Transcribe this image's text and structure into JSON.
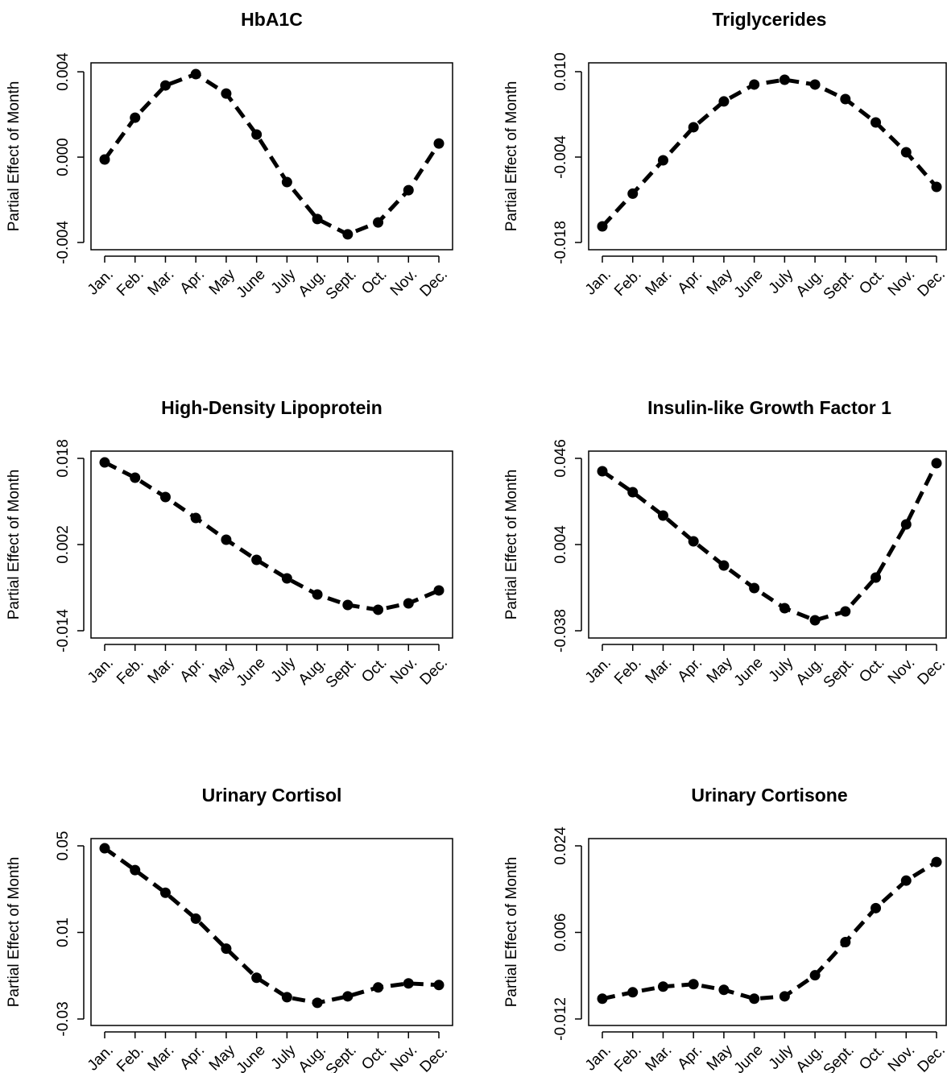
{
  "chart_data": [
    {
      "type": "line",
      "title": "HbA1C",
      "ylabel": "Partial Effect of Month",
      "categories": [
        "Jan.",
        "Feb.",
        "Mar.",
        "Apr.",
        "May",
        "June",
        "July",
        "Aug.",
        "Sept.",
        "Oct.",
        "Nov.",
        "Dec."
      ],
      "values": [
        -0.00011,
        0.00185,
        0.00336,
        0.00389,
        0.00298,
        0.00106,
        -0.00117,
        -0.0029,
        -0.00362,
        -0.00306,
        -0.00155,
        0.00064
      ],
      "color": "#000000",
      "ylim": [
        -0.00434,
        0.00442
      ],
      "yticks": [
        0.004,
        {
          "value": 0,
          "label": "0.000"
        },
        -0.004
      ]
    },
    {
      "type": "line",
      "title": "Triglycerides",
      "ylabel": "Partial Effect of Month",
      "categories": [
        "Jan.",
        "Feb.",
        "Mar.",
        "Apr.",
        "May",
        "June",
        "July",
        "Aug.",
        "Sept.",
        "Oct.",
        "Nov.",
        "Dec."
      ],
      "values": [
        -0.01536,
        -0.01,
        -0.00453,
        0.00089,
        0.00512,
        0.00789,
        0.00868,
        0.00789,
        0.00551,
        0.00168,
        -0.00321,
        -0.00889
      ],
      "color": "#000000",
      "ylim": [
        -0.01919,
        0.01145
      ],
      "yticks": [
        {
          "value": 0.01,
          "label": "0.010"
        },
        -0.004,
        -0.018
      ]
    },
    {
      "type": "line",
      "title": "High-Density Lipoprotein",
      "ylabel": "Partial Effect of Month",
      "categories": [
        "Jan.",
        "Feb.",
        "Mar.",
        "Apr.",
        "May",
        "June",
        "July",
        "Aug.",
        "Sept.",
        "Oct.",
        "Nov.",
        "Dec."
      ],
      "values": [
        0.01725,
        0.01441,
        0.01082,
        0.00693,
        0.0029,
        -0.00084,
        -0.00428,
        -0.00727,
        -0.00922,
        -0.01011,
        -0.00892,
        -0.00652
      ],
      "color": "#000000",
      "ylim": [
        -0.01535,
        0.01935
      ],
      "yticks": [
        0.018,
        0.002,
        -0.014
      ]
    },
    {
      "type": "line",
      "title": "Insulin-like Growth Factor 1",
      "ylabel": "Partial Effect of Month",
      "categories": [
        "Jan.",
        "Feb.",
        "Mar.",
        "Apr.",
        "May",
        "June",
        "July",
        "Aug.",
        "Sept.",
        "Oct.",
        "Nov.",
        "Dec."
      ],
      "values": [
        0.03972,
        0.02951,
        0.01813,
        0.00557,
        -0.00621,
        -0.0172,
        -0.02701,
        -0.0329,
        -0.02858,
        -0.01209,
        0.01381,
        0.04364
      ],
      "color": "#000000",
      "ylim": [
        -0.04153,
        0.04953
      ],
      "yticks": [
        0.046,
        0.004,
        -0.038
      ]
    },
    {
      "type": "line",
      "title": "Urinary Cortisol",
      "ylabel": "Partial Effect of Month",
      "categories": [
        "Jan.",
        "Feb.",
        "Mar.",
        "Apr.",
        "May",
        "June",
        "July",
        "Aug.",
        "Sept.",
        "Oct.",
        "Nov.",
        "Dec."
      ],
      "values": [
        0.04888,
        0.03879,
        0.02832,
        0.01636,
        0.00252,
        -0.01093,
        -0.01991,
        -0.02252,
        -0.01953,
        -0.01542,
        -0.01355,
        -0.0143
      ],
      "color": "#000000",
      "ylim": [
        -0.03299,
        0.05336
      ],
      "yticks": [
        0.05,
        0.01,
        -0.03
      ]
    },
    {
      "type": "line",
      "title": "Urinary Cortisone",
      "ylabel": "Partial Effect of Month",
      "categories": [
        "Jan.",
        "Feb.",
        "Mar.",
        "Apr.",
        "May",
        "June",
        "July",
        "Aug.",
        "Sept.",
        "Oct.",
        "Nov.",
        "Dec."
      ],
      "values": [
        -0.00779,
        -0.00645,
        -0.00527,
        -0.00477,
        -0.00594,
        -0.00779,
        -0.00729,
        -0.00291,
        0.00399,
        0.01105,
        0.01677,
        0.02064
      ],
      "color": "#000000",
      "ylim": [
        -0.01335,
        0.02551
      ],
      "yticks": [
        0.024,
        0.006,
        -0.012
      ]
    }
  ]
}
